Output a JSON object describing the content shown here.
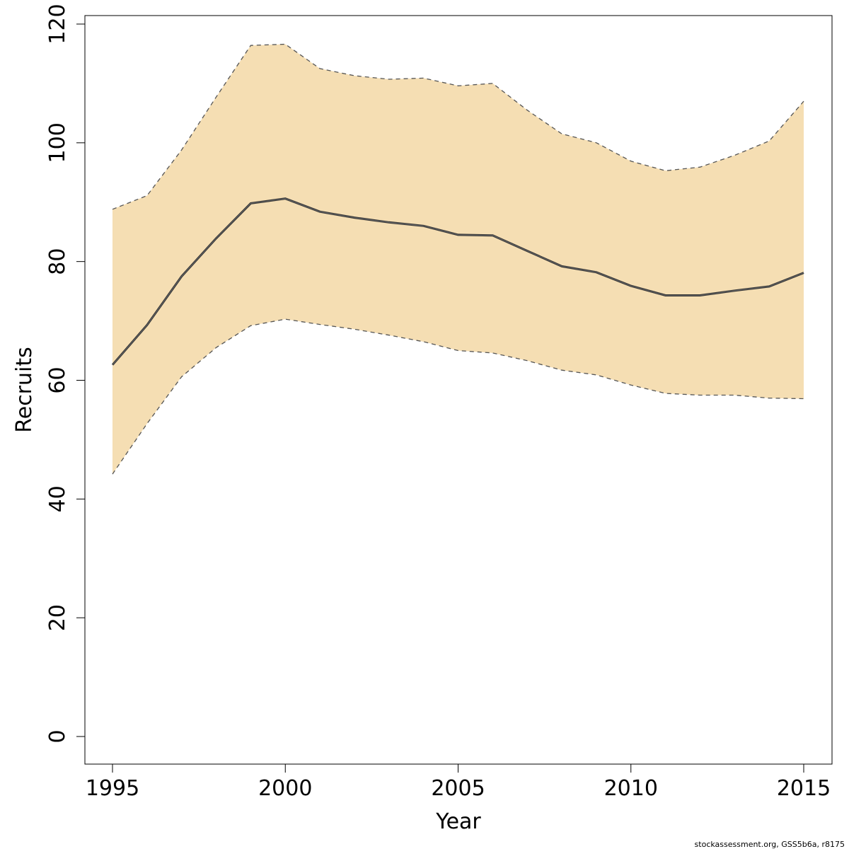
{
  "chart_data": {
    "type": "area",
    "xlabel": "Year",
    "ylabel": "Recruits",
    "xlim": [
      1995,
      2015
    ],
    "ylim": [
      0,
      120
    ],
    "x_ticks": [
      "1995",
      "2000",
      "2005",
      "2010",
      "2015"
    ],
    "y_ticks": [
      "0",
      "20",
      "40",
      "60",
      "80",
      "100",
      "120"
    ],
    "grid": false,
    "legend": "none",
    "x": [
      1995,
      1996,
      1997,
      1998,
      1999,
      2000,
      2001,
      2002,
      2003,
      2004,
      2005,
      2006,
      2007,
      2008,
      2009,
      2010,
      2011,
      2012,
      2013,
      2014,
      2015
    ],
    "series": [
      {
        "values": [
          62.6,
          69.3,
          77.5,
          83.9,
          89.8,
          90.6,
          88.4,
          87.4,
          86.6,
          86.0,
          84.5,
          84.4,
          81.8,
          79.2,
          78.2,
          75.9,
          74.3,
          74.3,
          75.1,
          75.8,
          78.1
        ]
      }
    ],
    "interval": {
      "upper": [
        88.8,
        91.1,
        98.8,
        107.7,
        116.4,
        116.6,
        112.5,
        111.3,
        110.7,
        110.9,
        109.6,
        110.0,
        105.5,
        101.5,
        100.0,
        96.9,
        95.3,
        95.9,
        97.9,
        100.3,
        107.0
      ],
      "lower": [
        44.2,
        52.7,
        60.6,
        65.5,
        69.2,
        70.3,
        69.4,
        68.6,
        67.6,
        66.5,
        65.0,
        64.6,
        63.3,
        61.7,
        60.9,
        59.2,
        57.8,
        57.5,
        57.5,
        57.0,
        56.9
      ]
    },
    "colors": {
      "band": "#f5deb3",
      "line": "#000000",
      "band_edge": "#555555"
    }
  },
  "footnote": "stockassessment.org, GSS5b6a, r8175"
}
